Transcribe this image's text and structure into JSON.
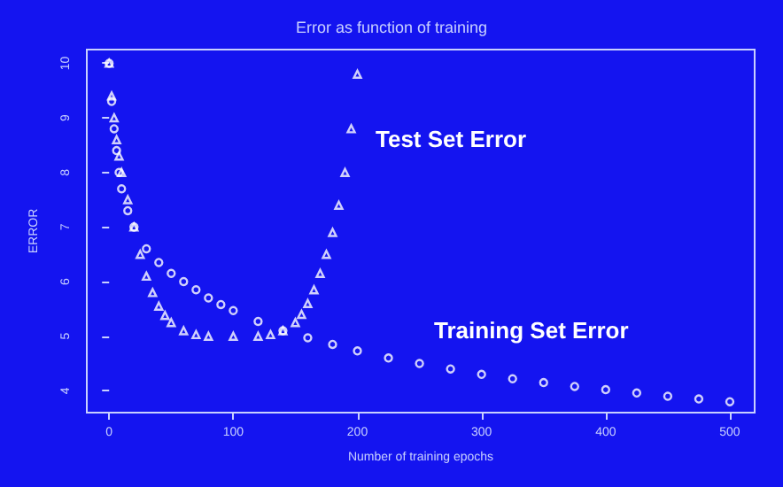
{
  "chart_data": {
    "type": "scatter",
    "title": "Error as function of training",
    "xlabel": "Number of training epochs",
    "ylabel": "ERROR",
    "xlim": [
      -18,
      520
    ],
    "xticks": [
      0,
      100,
      200,
      300,
      400,
      500
    ],
    "ylim": [
      3.6,
      10.25
    ],
    "yticks": [
      4,
      5,
      6,
      7,
      8,
      9,
      10
    ],
    "grid": false,
    "legend": false,
    "series": [
      {
        "name": "Training Set Error",
        "color": "#ffffff",
        "marker": "circle",
        "x": [
          0,
          2,
          4,
          6,
          8,
          10,
          15,
          20,
          30,
          40,
          50,
          60,
          70,
          80,
          90,
          100,
          120,
          140,
          160,
          180,
          200,
          225,
          250,
          275,
          300,
          325,
          350,
          375,
          400,
          425,
          450,
          475,
          500
        ],
        "values": [
          10,
          9.3,
          8.8,
          8.4,
          8.0,
          7.7,
          7.3,
          7.0,
          6.6,
          6.35,
          6.15,
          6.0,
          5.85,
          5.7,
          5.58,
          5.47,
          5.27,
          5.1,
          4.97,
          4.85,
          4.73,
          4.6,
          4.5,
          4.4,
          4.3,
          4.22,
          4.15,
          4.08,
          4.02,
          3.96,
          3.9,
          3.85,
          3.8
        ]
      },
      {
        "name": "Test Set Error",
        "color": "#ffffff",
        "marker": "triangle",
        "x": [
          0,
          2,
          4,
          6,
          8,
          10,
          15,
          20,
          25,
          30,
          35,
          40,
          45,
          50,
          60,
          70,
          80,
          100,
          120,
          130,
          140,
          150,
          155,
          160,
          165,
          170,
          175,
          180,
          185,
          190,
          195,
          200
        ],
        "values": [
          10,
          9.4,
          9.0,
          8.6,
          8.3,
          8.0,
          7.5,
          7.0,
          6.5,
          6.1,
          5.8,
          5.55,
          5.38,
          5.25,
          5.1,
          5.03,
          5.0,
          5.0,
          5.0,
          5.03,
          5.1,
          5.25,
          5.4,
          5.6,
          5.85,
          6.15,
          6.5,
          6.9,
          7.4,
          8.0,
          8.8,
          9.8
        ]
      }
    ]
  }
}
